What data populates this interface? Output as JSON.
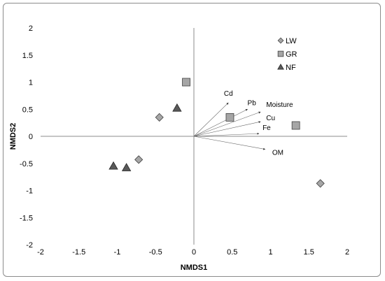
{
  "chart_data": {
    "type": "scatter",
    "title": "",
    "xlabel": "NMDS1",
    "ylabel": "NMDS2",
    "xlim": [
      -2,
      2
    ],
    "ylim": [
      -2,
      2
    ],
    "xticks": [
      -2,
      -1.5,
      -1,
      -0.5,
      0,
      0.5,
      1,
      1.5,
      2
    ],
    "yticks": [
      2,
      1.5,
      1,
      0.5,
      0,
      -0.5,
      -1,
      -1.5,
      -2
    ],
    "grid": false,
    "legend": "top-right",
    "series": [
      {
        "name": "LW",
        "marker": "diamond",
        "color": "#a6a6a6",
        "points": [
          [
            -0.45,
            0.35
          ],
          [
            -0.72,
            -0.43
          ],
          [
            1.65,
            -0.87
          ]
        ]
      },
      {
        "name": "GR",
        "marker": "square",
        "color": "#a6a6a6",
        "points": [
          [
            -0.1,
            1.0
          ],
          [
            0.47,
            0.35
          ],
          [
            1.33,
            0.2
          ]
        ]
      },
      {
        "name": "NF",
        "marker": "triangle",
        "color": "#595959",
        "points": [
          [
            -0.22,
            0.52
          ],
          [
            -1.05,
            -0.55
          ],
          [
            -0.88,
            -0.58
          ]
        ]
      }
    ],
    "vectors": [
      {
        "label": "Cd",
        "x": 0.45,
        "y": 0.62
      },
      {
        "label": "Pb",
        "x": 0.7,
        "y": 0.5
      },
      {
        "label": "Moisture",
        "x": 0.87,
        "y": 0.45
      },
      {
        "label": "Cu",
        "x": 0.87,
        "y": 0.27
      },
      {
        "label": "Fe",
        "x": 0.85,
        "y": 0.05
      },
      {
        "label": "OM",
        "x": 0.93,
        "y": -0.24
      }
    ]
  }
}
